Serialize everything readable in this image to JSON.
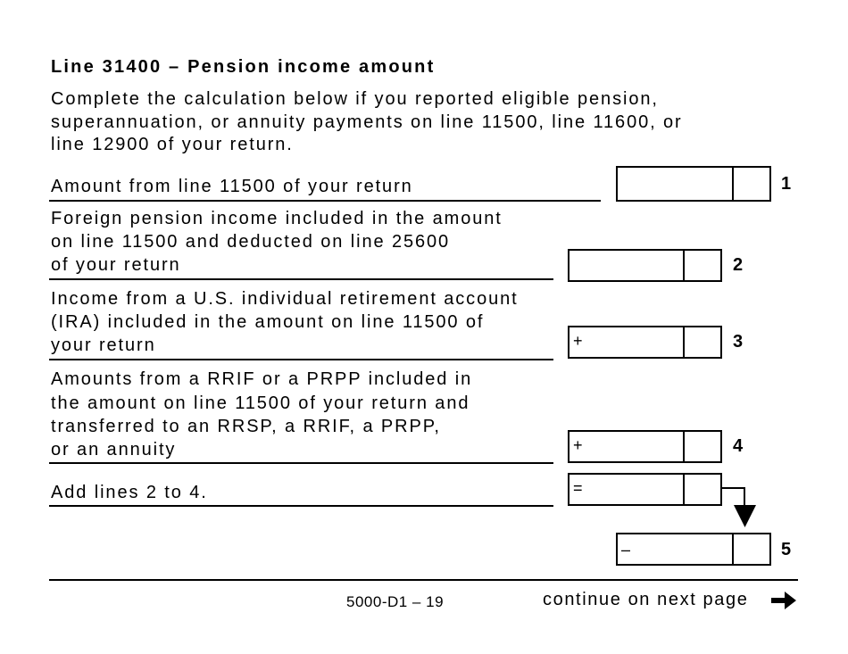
{
  "title": "Line 31400 – Pension income amount",
  "intro": [
    "Complete the calculation below if you reported eligible pension,",
    "superannuation, or annuity payments on line 11500, line 11600, or",
    "line 12900 of your return."
  ],
  "rows": [
    {
      "lines": [
        "Amount from line 11500 of your return"
      ],
      "operator": "",
      "line_number": "1"
    },
    {
      "lines": [
        "Foreign pension income included in the amount",
        "on line 11500 and deducted on line 25600",
        "of your return"
      ],
      "operator": "",
      "line_number": "2"
    },
    {
      "lines": [
        "Income from a U.S. individual retirement account",
        "(IRA) included in the amount on line 11500 of",
        "your return"
      ],
      "operator": "+",
      "line_number": "3"
    },
    {
      "lines": [
        "Amounts from a RRIF or a PRPP included in",
        "the amount on line 11500 of your return and",
        "transferred to an RRSP, a RRIF, a PRPP,",
        "or an annuity"
      ],
      "operator": "+",
      "line_number": "4"
    },
    {
      "lines": [
        "Add lines 2 to 4."
      ],
      "operator": "=",
      "line_number": ""
    },
    {
      "lines": [],
      "operator": "–",
      "line_number": "5"
    }
  ],
  "footer": {
    "form_id": "5000-D1 – 19",
    "continue": "continue on next page"
  }
}
